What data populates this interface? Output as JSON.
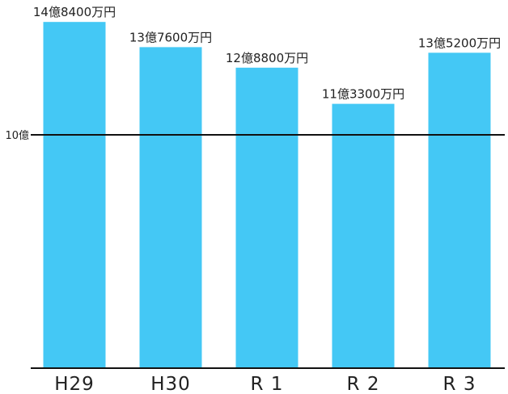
{
  "chart_data": {
    "type": "bar",
    "categories": [
      "H29",
      "H30",
      "R 1",
      "R 2",
      "R 3"
    ],
    "values": [
      1.484,
      1.376,
      1.288,
      1.133,
      1.352
    ],
    "value_labels": [
      "14億8400万円",
      "13億7600万円",
      "12億8800万円",
      "11億3300万円",
      "13億5200万円"
    ],
    "reference_line": {
      "value": 1.0,
      "label": "10億"
    },
    "ylim": [
      0,
      1.54
    ],
    "bar_color": "#44c8f5",
    "axis_color": "#111111",
    "title": "",
    "xlabel": "",
    "ylabel": "",
    "grid": false,
    "legend": "none"
  }
}
